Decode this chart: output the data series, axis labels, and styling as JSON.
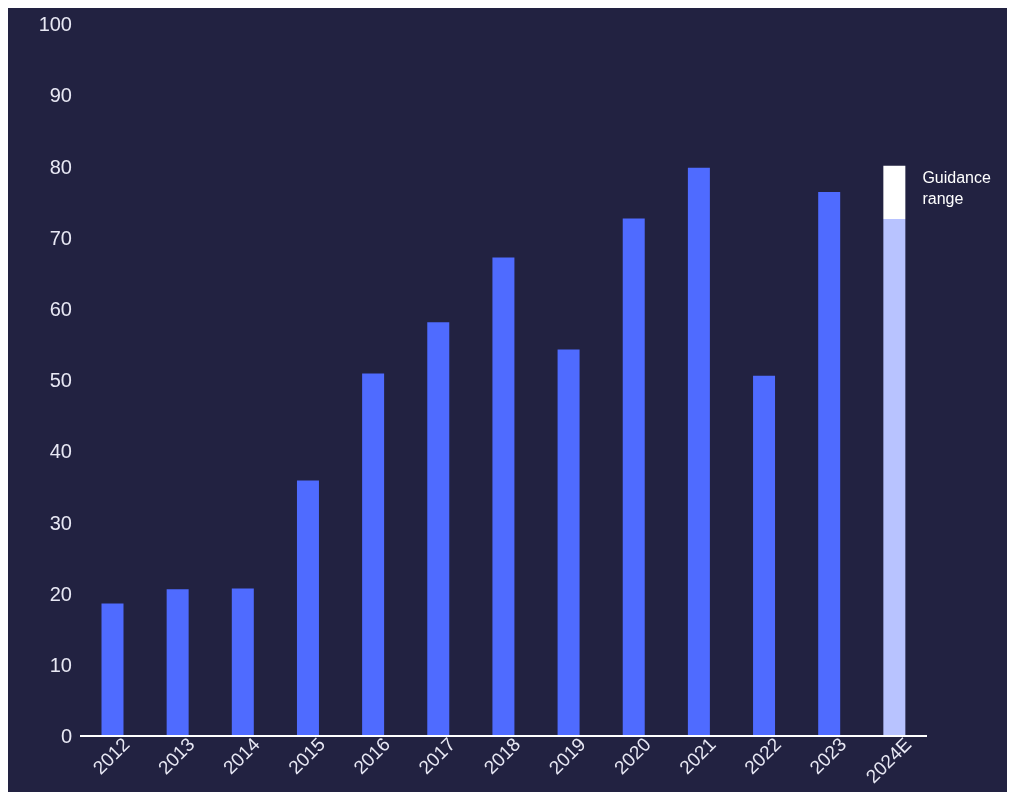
{
  "chart_data": {
    "type": "bar",
    "stacked": true,
    "categories": [
      "2012",
      "2013",
      "2014",
      "2015",
      "2016",
      "2017",
      "2018",
      "2019",
      "2020",
      "2021",
      "2022",
      "2023",
      "2024E"
    ],
    "series": [
      {
        "color": "#4f6bff",
        "colors": [
          "#4f6bff",
          "#4f6bff",
          "#4f6bff",
          "#4f6bff",
          "#4f6bff",
          "#4f6bff",
          "#4f6bff",
          "#4f6bff",
          "#4f6bff",
          "#4f6bff",
          "#4f6bff",
          "#4f6bff",
          "#b8c3ff"
        ],
        "values": [
          18.6,
          20.6,
          20.7,
          35.9,
          50.9,
          58.1,
          67.2,
          54.3,
          72.7,
          79.8,
          50.6,
          76.4,
          72.6
        ]
      },
      {
        "color": "#ffffff",
        "values": [
          null,
          null,
          null,
          null,
          null,
          null,
          null,
          null,
          null,
          null,
          null,
          null,
          7.5
        ]
      }
    ],
    "ylim": [
      0,
      100
    ],
    "yticks": [
      0,
      10,
      20,
      30,
      40,
      50,
      60,
      70,
      80,
      90,
      100
    ],
    "grid": false,
    "legend": false,
    "annotations": [
      {
        "text": "Guidance range",
        "x": "2024E",
        "y": 76.3
      }
    ]
  }
}
